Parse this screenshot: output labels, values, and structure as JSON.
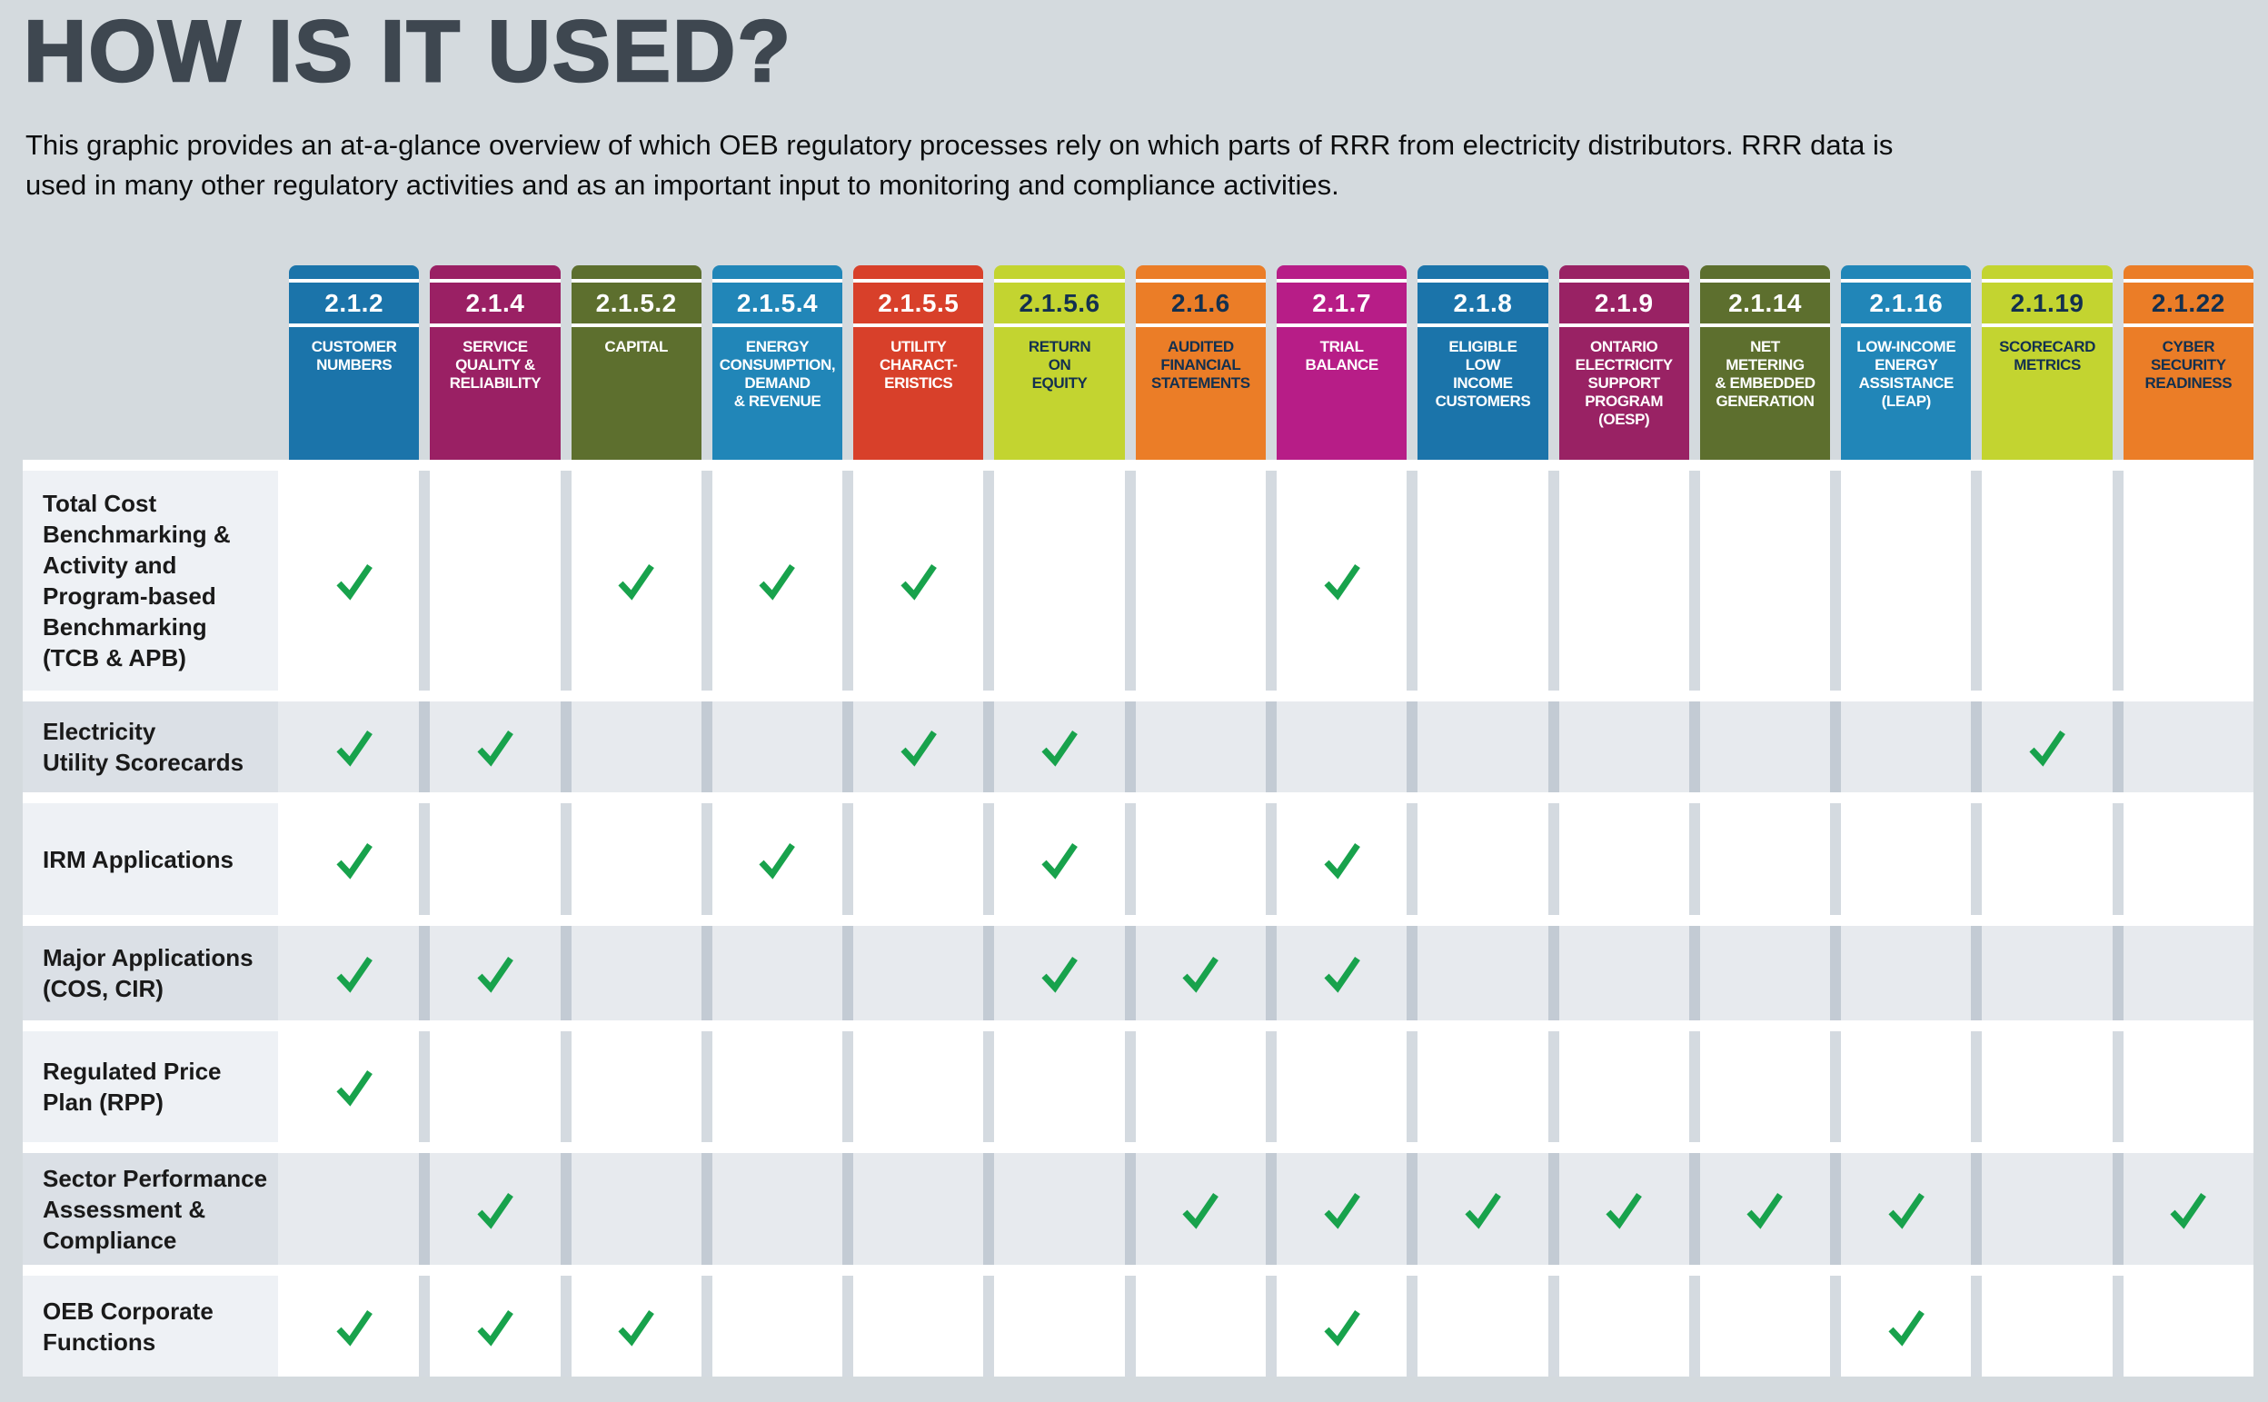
{
  "page": {
    "title": "HOW IS IT USED?",
    "subtitle_lines": [
      "This graphic provides an at-a-glance overview of which OEB regulatory processes rely on which parts of RRR from electricity distributors. RRR data is",
      "used in many other regulatory activities and as an important input to monitoring and compliance activities."
    ]
  },
  "matrix": {
    "check_color": "#18a24c",
    "columns": [
      {
        "code": "2.1.2",
        "label": "CUSTOMER\nNUMBERS",
        "color": "#1b74aa",
        "text_color": "#ffffff"
      },
      {
        "code": "2.1.4",
        "label": "SERVICE\nQUALITY &\nRELIABILITY",
        "color": "#9a2064",
        "text_color": "#ffffff"
      },
      {
        "code": "2.1.5.2",
        "label": "CAPITAL",
        "color": "#5d6f2e",
        "text_color": "#ffffff"
      },
      {
        "code": "2.1.5.4",
        "label": "ENERGY\nCONSUMPTION,\nDEMAND\n& REVENUE",
        "color": "#2186b8",
        "text_color": "#ffffff"
      },
      {
        "code": "2.1.5.5",
        "label": "UTILITY\nCHARACT-\nERISTICS",
        "color": "#d8402a",
        "text_color": "#ffffff"
      },
      {
        "code": "2.1.5.6",
        "label": "RETURN\nON\nEQUITY",
        "color": "#c3d430",
        "text_color": "#13304f"
      },
      {
        "code": "2.1.6",
        "label": "AUDITED\nFINANCIAL\nSTATEMENTS",
        "color": "#eb7d27",
        "text_color": "#13304f"
      },
      {
        "code": "2.1.7",
        "label": "TRIAL\nBALANCE",
        "color": "#b71d87",
        "text_color": "#ffffff"
      },
      {
        "code": "2.1.8",
        "label": "ELIGIBLE\nLOW\nINCOME\nCUSTOMERS",
        "color": "#1b74aa",
        "text_color": "#ffffff"
      },
      {
        "code": "2.1.9",
        "label": "ONTARIO\nELECTRICITY\nSUPPORT\nPROGRAM\n(OESP)",
        "color": "#992264",
        "text_color": "#ffffff"
      },
      {
        "code": "2.1.14",
        "label": "NET\nMETERING\n& EMBEDDED\nGENERATION",
        "color": "#5d6f2e",
        "text_color": "#ffffff"
      },
      {
        "code": "2.1.16",
        "label": "LOW-INCOME\nENERGY\nASSISTANCE\n(LEAP)",
        "color": "#2186b8",
        "text_color": "#ffffff"
      },
      {
        "code": "2.1.19",
        "label": "SCORECARD\nMETRICS",
        "color": "#c3d430",
        "text_color": "#13304f"
      },
      {
        "code": "2.1.22",
        "label": "CYBER\nSECURITY\nREADINESS",
        "color": "#eb7d27",
        "text_color": "#13304f"
      }
    ],
    "rows": [
      {
        "label": "Total Cost\nBenchmarking &\nActivity and\nProgram-based\nBenchmarking\n(TCB & APB)",
        "checks": [
          "2.1.2",
          "2.1.5.2",
          "2.1.5.4",
          "2.1.5.5",
          "2.1.7"
        ]
      },
      {
        "label": "Electricity\nUtility Scorecards",
        "checks": [
          "2.1.2",
          "2.1.4",
          "2.1.5.5",
          "2.1.5.6",
          "2.1.19"
        ]
      },
      {
        "label": "IRM Applications",
        "checks": [
          "2.1.2",
          "2.1.5.4",
          "2.1.5.6",
          "2.1.7"
        ]
      },
      {
        "label": "Major Applications\n(COS, CIR)",
        "checks": [
          "2.1.2",
          "2.1.4",
          "2.1.5.6",
          "2.1.6",
          "2.1.7"
        ]
      },
      {
        "label": "Regulated Price\nPlan (RPP)",
        "checks": [
          "2.1.2"
        ]
      },
      {
        "label": "Sector Performance\nAssessment &\nCompliance",
        "checks": [
          "2.1.4",
          "2.1.6",
          "2.1.7",
          "2.1.8",
          "2.1.9",
          "2.1.14",
          "2.1.16",
          "2.1.22"
        ]
      },
      {
        "label": "OEB Corporate\nFunctions",
        "checks": [
          "2.1.2",
          "2.1.4",
          "2.1.5.2",
          "2.1.7",
          "2.1.16"
        ]
      }
    ]
  }
}
